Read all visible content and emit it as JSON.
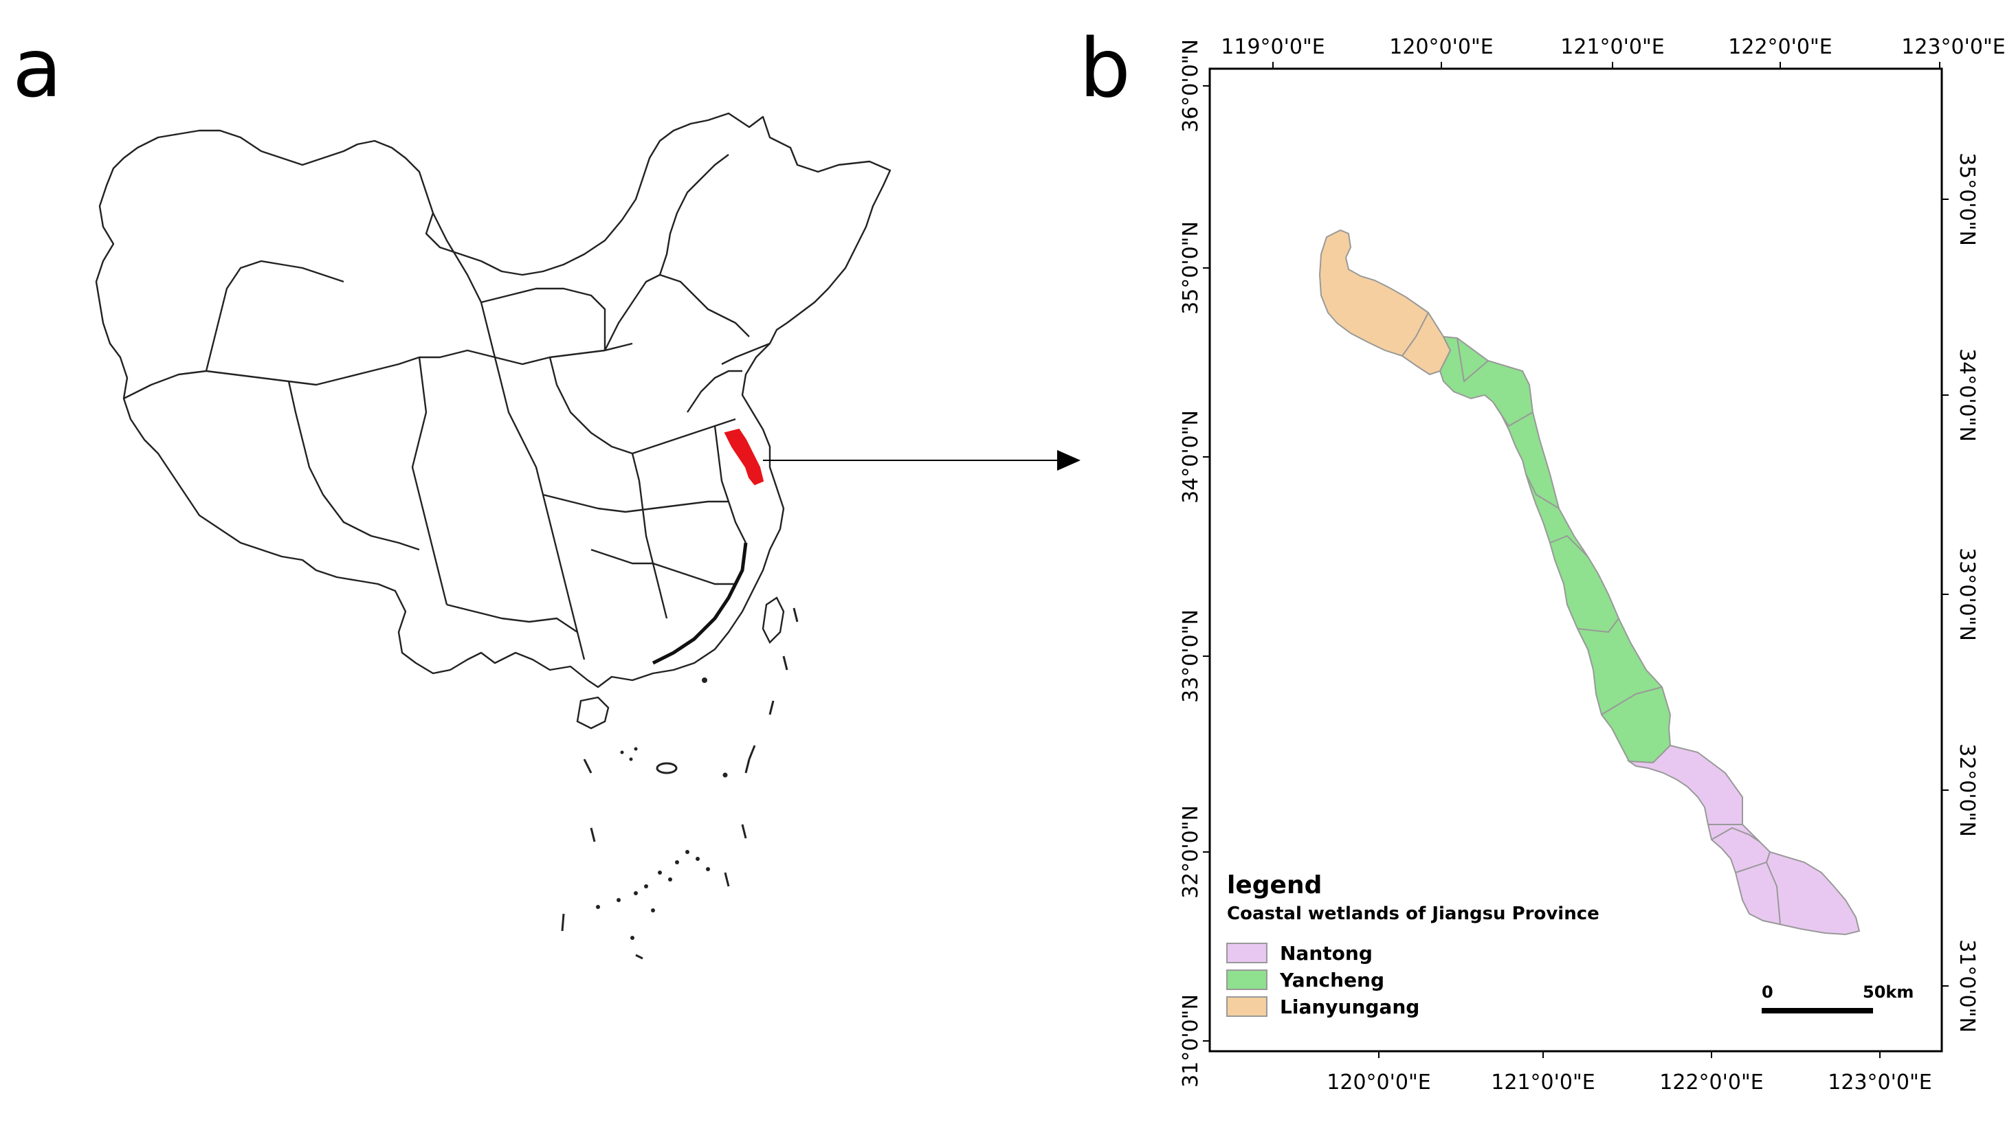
{
  "panel_a": {
    "letter": "a"
  },
  "panel_b": {
    "letter": "b",
    "top_ticks": [
      "119°0'0\"E",
      "120°0'0\"E",
      "121°0'0\"E",
      "122°0'0\"E",
      "123°0'0\"E"
    ],
    "bottom_ticks": [
      "120°0'0\"E",
      "121°0'0\"E",
      "122°0'0\"E",
      "123°0'0\"E"
    ],
    "left_ticks": [
      "36°0'0\"N",
      "35°0'0\"N",
      "34°0'0\"N",
      "33°0'0\"N",
      "32°0'0\"N",
      "31°0'0\"N"
    ],
    "right_ticks": [
      "35°0'0\"N",
      "34°0'0\"N",
      "33°0'0\"N",
      "32°0'0\"N",
      "31°0'0\"N"
    ],
    "legend": {
      "title": "legend",
      "subtitle": "Coastal wetlands of Jiangsu Province",
      "items": [
        {
          "label": "Nantong",
          "color": "#E8C8F0"
        },
        {
          "label": "Yancheng",
          "color": "#8FE08F"
        },
        {
          "label": "Lianyungang",
          "color": "#F5CFA0"
        }
      ]
    },
    "scale_bar": {
      "start_label": "0",
      "end_label": "50km"
    }
  },
  "highlight_color": "#E8141B"
}
